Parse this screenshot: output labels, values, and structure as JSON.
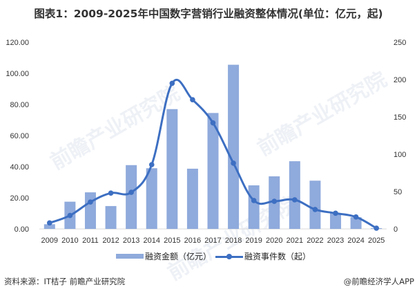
{
  "title": "图表1：2009-2025年中国数字营销行业融资整体情况(单位：亿元，起)",
  "chart_data": {
    "type": "bar+line",
    "title": "图表1：2009-2025年中国数字营销行业融资整体情况(单位：亿元，起)",
    "categories": [
      "2009",
      "2010",
      "2011",
      "2012",
      "2013",
      "2014",
      "2015",
      "2016",
      "2017",
      "2018",
      "2019",
      "2020",
      "2021",
      "2022",
      "2023",
      "2024",
      "2025"
    ],
    "series": [
      {
        "name": "融资金额（亿元）",
        "type": "bar",
        "axis": "left",
        "color": "#8faadc",
        "values": [
          3.0,
          17.5,
          23.5,
          14.7,
          41.0,
          39.0,
          77.0,
          38.7,
          74.5,
          105.5,
          28.0,
          33.8,
          43.5,
          31.0,
          10.2,
          7.5,
          0.5
        ]
      },
      {
        "name": "融资事件数（起）",
        "type": "line",
        "axis": "right",
        "color": "#3d6fc2",
        "values": [
          8,
          18,
          36,
          48,
          49,
          86,
          195,
          173,
          142,
          88,
          38,
          37,
          39,
          26,
          21,
          16,
          1
        ]
      }
    ],
    "yaxis_left": {
      "range": [
        0,
        120
      ],
      "ticks": [
        "0.00",
        "20.00",
        "40.00",
        "60.00",
        "80.00",
        "100.00",
        "120.00"
      ]
    },
    "yaxis_right": {
      "range": [
        0,
        250
      ],
      "ticks": [
        "0",
        "50",
        "100",
        "150",
        "200",
        "250"
      ]
    },
    "xlabel": "",
    "ylabel": "",
    "grid": false,
    "legend_position": "bottom"
  },
  "legend": {
    "bar_label": "融资金额（亿元）",
    "line_label": "融资事件数（起）"
  },
  "footer": {
    "source": "资料来源：IT桔子 前瞻产业研究院",
    "credit": "@前瞻经济学人APP"
  },
  "watermark": "前瞻产业研究院"
}
